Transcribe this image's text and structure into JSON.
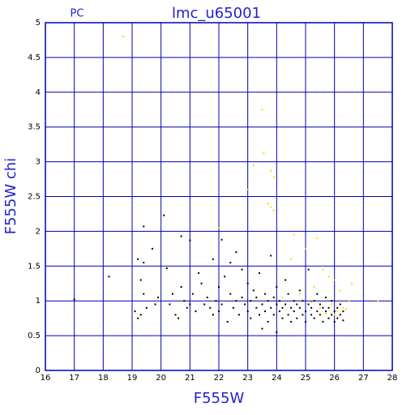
{
  "chart_data": {
    "type": "scatter",
    "title": "lmc_u65001",
    "subtitle": "PC",
    "x_label": "F555W",
    "y_label": "F555W chi",
    "xlim": [
      16,
      28
    ],
    "ylim": [
      0,
      5
    ],
    "xticks": [
      16,
      17,
      18,
      19,
      20,
      21,
      22,
      23,
      24,
      25,
      26,
      27,
      28
    ],
    "yticks": [
      0,
      0.5,
      1,
      1.5,
      2,
      2.5,
      3,
      3.5,
      4,
      4.5,
      5
    ],
    "grid": true,
    "grid_color": "#0000b0",
    "series": [
      {
        "color": "#000000",
        "x": [
          17.0,
          18.2,
          19.2,
          19.3,
          19.4,
          19.4,
          19.1,
          19.2,
          19.3,
          19.5,
          19.4,
          19.7,
          19.9,
          19.8,
          20.1,
          20.2,
          20.3,
          20.4,
          20.5,
          20.6,
          20.7,
          20.8,
          20.7,
          20.9,
          21.0,
          21.0,
          21.1,
          21.2,
          21.3,
          21.4,
          21.5,
          21.6,
          21.7,
          21.8,
          21.8,
          21.9,
          22.0,
          22.0,
          22.1,
          22.1,
          22.2,
          22.3,
          22.4,
          22.4,
          22.5,
          22.6,
          22.6,
          22.7,
          22.8,
          22.8,
          22.9,
          23.0,
          23.0,
          23.1,
          23.1,
          23.2,
          23.3,
          23.3,
          23.4,
          23.4,
          23.5,
          23.5,
          23.6,
          23.6,
          23.7,
          23.7,
          23.8,
          23.8,
          23.9,
          23.9,
          24.0,
          24.0,
          24.0,
          24.1,
          24.1,
          24.2,
          24.2,
          24.3,
          24.3,
          24.4,
          24.4,
          24.5,
          24.5,
          24.6,
          24.6,
          24.7,
          24.7,
          24.8,
          24.8,
          24.9,
          24.9,
          25.0,
          25.0,
          25.1,
          25.1,
          25.2,
          25.2,
          25.3,
          25.3,
          25.4,
          25.4,
          25.5,
          25.5,
          25.6,
          25.6,
          25.7,
          25.7,
          25.8,
          25.8,
          25.9,
          25.9,
          26.0,
          26.0,
          26.1,
          26.1,
          26.2,
          26.2,
          26.3,
          26.3
        ],
        "y": [
          1.02,
          1.35,
          1.6,
          1.3,
          1.55,
          2.07,
          0.85,
          0.75,
          0.8,
          0.9,
          1.1,
          1.75,
          1.05,
          0.95,
          2.23,
          1.47,
          0.95,
          1.1,
          0.8,
          0.75,
          1.2,
          1.0,
          1.93,
          0.9,
          1.87,
          0.95,
          1.1,
          0.85,
          1.4,
          1.25,
          0.95,
          1.05,
          0.9,
          1.6,
          0.8,
          1.0,
          0.85,
          1.2,
          1.88,
          0.95,
          1.35,
          0.7,
          1.1,
          1.55,
          0.9,
          1.0,
          1.7,
          0.8,
          1.45,
          1.05,
          0.95,
          1.25,
          0.85,
          1.0,
          0.75,
          1.15,
          0.9,
          1.05,
          1.4,
          0.8,
          0.95,
          0.6,
          1.1,
          0.85,
          1.0,
          0.7,
          1.65,
          0.9,
          1.05,
          0.8,
          0.95,
          0.55,
          1.2,
          0.85,
          1.0,
          0.9,
          0.75,
          1.3,
          0.95,
          0.8,
          1.1,
          0.9,
          0.7,
          1.0,
          0.85,
          0.95,
          0.75,
          0.9,
          1.15,
          0.8,
          1.0,
          0.85,
          0.7,
          0.95,
          1.45,
          0.8,
          0.9,
          0.75,
          1.0,
          0.85,
          1.1,
          0.8,
          0.95,
          0.7,
          0.9,
          0.85,
          1.05,
          0.75,
          0.9,
          0.8,
          1.0,
          0.85,
          0.7,
          0.9,
          0.75,
          0.8,
          0.95,
          0.85,
          0.72
        ]
      },
      {
        "color": "#ffd700",
        "x": [
          18.7,
          23.5,
          23.55,
          23.2,
          23.8,
          23.9,
          23.0,
          23.7,
          23.8,
          23.9,
          22.0,
          24.6,
          25.4,
          25.0,
          24.5,
          25.6,
          25.8,
          26.0,
          26.6,
          25.3,
          26.2,
          24.8,
          26.5,
          27.5,
          25.9,
          26.3,
          26.1,
          25.7,
          26.4,
          25.5,
          26.0,
          24.2,
          25.2
        ],
        "y": [
          4.8,
          3.75,
          3.12,
          2.95,
          2.87,
          2.78,
          2.6,
          2.4,
          2.35,
          2.3,
          2.05,
          1.95,
          1.9,
          1.75,
          1.6,
          1.45,
          1.35,
          1.3,
          1.25,
          1.2,
          1.15,
          1.1,
          1.0,
          1.0,
          0.95,
          0.9,
          0.85,
          0.82,
          0.88,
          0.9,
          0.8,
          1.05,
          0.98
        ]
      }
    ]
  }
}
